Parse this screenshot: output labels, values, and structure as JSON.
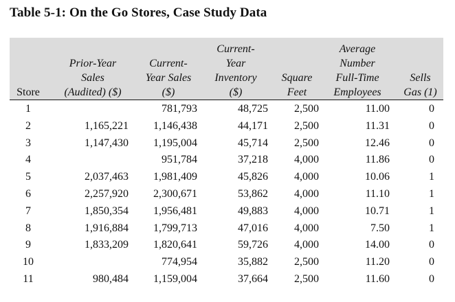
{
  "title": "Table 5-1: On the Go Stores, Case Study Data",
  "headers": {
    "store": [
      "Store"
    ],
    "prior": [
      "Prior-Year",
      "Sales",
      "(Audited) ($)"
    ],
    "cur": [
      "Current-",
      "Year Sales",
      "($)"
    ],
    "inv": [
      "Current-",
      "Year",
      "Inventory",
      "($)"
    ],
    "sq": [
      "Square",
      "Feet"
    ],
    "emp": [
      "Average",
      "Number",
      "Full-Time",
      "Employees"
    ],
    "gas": [
      "Sells",
      "Gas (1)"
    ]
  },
  "rows": [
    {
      "store": "1",
      "prior": "",
      "cur": "781,793",
      "inv": "48,725",
      "sq": "2,500",
      "emp": "11.00",
      "gas": "0"
    },
    {
      "store": "2",
      "prior": "1,165,221",
      "cur": "1,146,438",
      "inv": "44,171",
      "sq": "2,500",
      "emp": "11.31",
      "gas": "0"
    },
    {
      "store": "3",
      "prior": "1,147,430",
      "cur": "1,195,004",
      "inv": "45,714",
      "sq": "2,500",
      "emp": "12.46",
      "gas": "0"
    },
    {
      "store": "4",
      "prior": "",
      "cur": "951,784",
      "inv": "37,218",
      "sq": "4,000",
      "emp": "11.86",
      "gas": "0"
    },
    {
      "store": "5",
      "prior": "2,037,463",
      "cur": "1,981,409",
      "inv": "45,826",
      "sq": "4,000",
      "emp": "10.06",
      "gas": "1"
    },
    {
      "store": "6",
      "prior": "2,257,920",
      "cur": "2,300,671",
      "inv": "53,862",
      "sq": "4,000",
      "emp": "11.10",
      "gas": "1"
    },
    {
      "store": "7",
      "prior": "1,850,354",
      "cur": "1,956,481",
      "inv": "49,883",
      "sq": "4,000",
      "emp": "10.71",
      "gas": "1"
    },
    {
      "store": "8",
      "prior": "1,916,884",
      "cur": "1,799,713",
      "inv": "47,016",
      "sq": "4,000",
      "emp": "7.50",
      "gas": "1"
    },
    {
      "store": "9",
      "prior": "1,833,209",
      "cur": "1,820,641",
      "inv": "59,726",
      "sq": "4,000",
      "emp": "14.00",
      "gas": "0"
    },
    {
      "store": "10",
      "prior": "",
      "cur": "774,954",
      "inv": "35,882",
      "sq": "2,500",
      "emp": "11.20",
      "gas": "0"
    },
    {
      "store": "11",
      "prior": "980,484",
      "cur": "1,159,004",
      "inv": "37,664",
      "sq": "2,500",
      "emp": "11.60",
      "gas": "0"
    }
  ]
}
